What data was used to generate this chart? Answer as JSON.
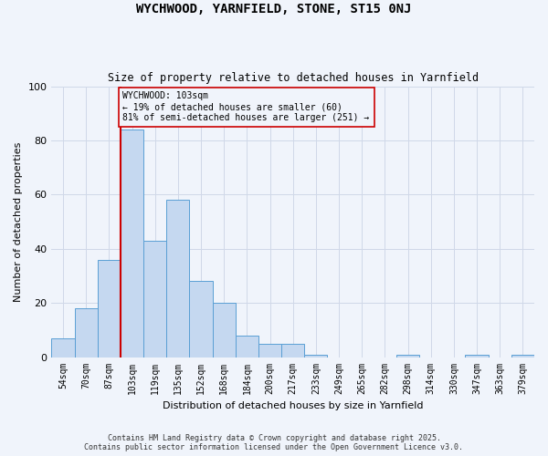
{
  "title": "WYCHWOOD, YARNFIELD, STONE, ST15 0NJ",
  "subtitle": "Size of property relative to detached houses in Yarnfield",
  "xlabel": "Distribution of detached houses by size in Yarnfield",
  "ylabel": "Number of detached properties",
  "bin_labels": [
    "54sqm",
    "70sqm",
    "87sqm",
    "103sqm",
    "119sqm",
    "135sqm",
    "152sqm",
    "168sqm",
    "184sqm",
    "200sqm",
    "217sqm",
    "233sqm",
    "249sqm",
    "265sqm",
    "282sqm",
    "298sqm",
    "314sqm",
    "330sqm",
    "347sqm",
    "363sqm",
    "379sqm"
  ],
  "bar_heights": [
    7,
    18,
    36,
    84,
    43,
    58,
    28,
    20,
    8,
    5,
    5,
    1,
    0,
    0,
    0,
    1,
    0,
    0,
    1,
    0,
    1
  ],
  "bar_color": "#c5d8f0",
  "bar_edge_color": "#5a9fd4",
  "vline_color": "#cc0000",
  "annotation_line1": "WYCHWOOD: 103sqm",
  "annotation_line2": "← 19% of detached houses are smaller (60)",
  "annotation_line3": "81% of semi-detached houses are larger (251) →",
  "annotation_box_edge": "#cc0000",
  "ylim": [
    0,
    100
  ],
  "yticks": [
    0,
    20,
    40,
    60,
    80,
    100
  ],
  "footer_line1": "Contains HM Land Registry data © Crown copyright and database right 2025.",
  "footer_line2": "Contains public sector information licensed under the Open Government Licence v3.0.",
  "background_color": "#f0f4fb",
  "grid_color": "#d0d8e8"
}
